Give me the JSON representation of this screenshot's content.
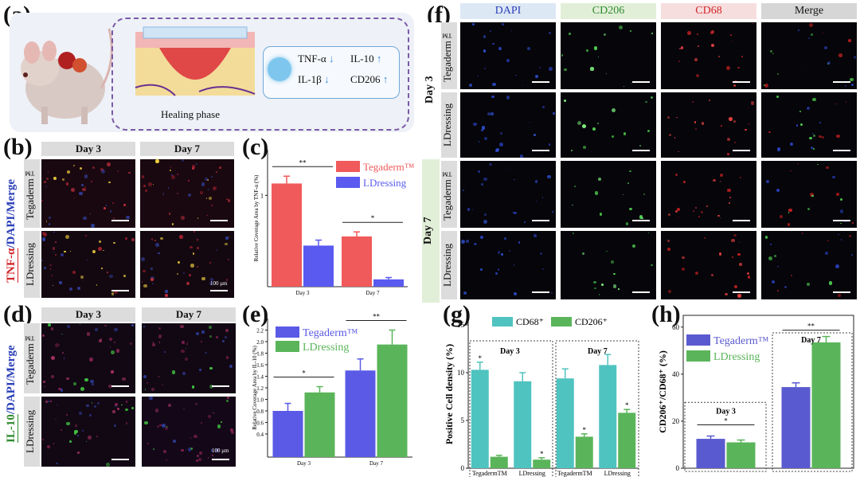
{
  "panel_labels": {
    "a": "(a)",
    "b": "(b)",
    "c": "(c)",
    "d": "(d)",
    "e": "(e)",
    "f": "(f)",
    "g": "(g)",
    "h": "(h)"
  },
  "schematic": {
    "cytokines": [
      "TNF-α",
      "IL-10",
      "IL-1β",
      "CD206"
    ],
    "down_arrow_color": "#3a8fd8",
    "up_arrow_color": "#3a8fd8",
    "caption": "Healing phase",
    "border_color": "#7a5aa8",
    "bg_color": "#eef1f7"
  },
  "panel_b": {
    "days": [
      "Day 3",
      "Day 7"
    ],
    "row_labels": [
      "Tegaderm™",
      "LDressing"
    ],
    "side_label_a": "TNF-α",
    "side_label_b": "/DAPI/Merge",
    "side_label_color": "#d0262a",
    "scale": "100 μm"
  },
  "panel_d": {
    "days": [
      "Day 3",
      "Day 7"
    ],
    "row_labels": [
      "Tegaderm™",
      "LDressing"
    ],
    "side_label_a": "IL-10",
    "side_label_b": "/DAPI/Merge",
    "side_label_color": "#2e8b2e",
    "scale": "100 μm"
  },
  "panel_f": {
    "channels": [
      "DAPI",
      "CD206",
      "CD68",
      "Merge"
    ],
    "channel_colors": [
      "#2a3fb8",
      "#2e8b2e",
      "#d0262a",
      "#111111"
    ],
    "channel_bgs": [
      "#dde8f5",
      "#e2efd8",
      "#f7dede",
      "#d6d6d6"
    ],
    "day_groups": [
      "Day 3",
      "Day 7"
    ],
    "row_labels": [
      "Tegaderm™",
      "LDressing",
      "Tegaderm™",
      "LDressing"
    ]
  },
  "chart_data": [
    {
      "panel": "c",
      "type": "bar",
      "categories": [
        "Day 3",
        "Day 7"
      ],
      "series": [
        {
          "name": "Tegaderm™",
          "values": [
            1.13,
            0.55
          ],
          "errors": [
            0.08,
            0.05
          ],
          "color": "#f05a5a"
        },
        {
          "name": "LDressing",
          "values": [
            0.45,
            0.08
          ],
          "errors": [
            0.06,
            0.02
          ],
          "color": "#5a5af0"
        }
      ],
      "ylabel": "Relative Coverage Area by TNF-α (%)",
      "ylim": [
        0,
        1.5
      ],
      "yticks": [
        {
          "v": 1.0,
          "label": "1"
        }
      ],
      "significance": [
        "**",
        "*"
      ],
      "legend": "top-right"
    },
    {
      "panel": "e",
      "type": "bar",
      "categories": [
        "Day 3",
        "Day 7"
      ],
      "series": [
        {
          "name": "Tegaderm™",
          "values": [
            0.8,
            1.5
          ],
          "errors": [
            0.13,
            0.2
          ],
          "color": "#5a5ae6"
        },
        {
          "name": "LDressing",
          "values": [
            1.12,
            1.95
          ],
          "errors": [
            0.1,
            0.25
          ],
          "color": "#5ab55a"
        }
      ],
      "ylabel": "Relative Coverage Area by IL-10 (%)",
      "ylim": [
        0,
        2.4
      ],
      "yticks": [
        {
          "v": 0.4,
          "label": "0.4"
        },
        {
          "v": 0.6,
          "label": "0.6"
        },
        {
          "v": 0.8,
          "label": "0.8"
        },
        {
          "v": 1.0,
          "label": "1.0"
        },
        {
          "v": 1.2,
          "label": "1.2"
        },
        {
          "v": 1.4,
          "label": "1.4"
        },
        {
          "v": 1.6,
          "label": "1.6"
        },
        {
          "v": 1.8,
          "label": "1.8"
        },
        {
          "v": 2.0,
          "label": "2.0"
        },
        {
          "v": 2.2,
          "label": "2.2"
        }
      ],
      "significance": [
        "*",
        "**"
      ],
      "legend": "top-left"
    },
    {
      "panel": "g",
      "type": "bar",
      "categories": [
        "TegadermTM",
        "LDressing",
        "TegadermTM",
        "LDressing"
      ],
      "groups": [
        "Day 3",
        "Day 7"
      ],
      "series": [
        {
          "name": "CD68⁺",
          "values": [
            10.3,
            9.1,
            9.4,
            10.8
          ],
          "errors": [
            0.8,
            0.9,
            1.0,
            1.1
          ],
          "color": "#4fc3c0"
        },
        {
          "name": "CD206⁺",
          "values": [
            1.2,
            0.9,
            3.3,
            5.8
          ],
          "errors": [
            0.15,
            0.2,
            0.3,
            0.35
          ],
          "color": "#5ab55a"
        }
      ],
      "ylabel": "Positive Cell density (%)",
      "ylim": [
        0,
        15.5
      ],
      "yticks": [
        {
          "v": 0,
          "label": "0"
        },
        {
          "v": 5,
          "label": "5"
        },
        {
          "v": 10,
          "label": "10"
        },
        {
          "v": 15,
          "label": "15"
        }
      ],
      "significance": [
        "*",
        "*",
        "*",
        "*"
      ],
      "legend": "top"
    },
    {
      "panel": "h",
      "type": "bar",
      "categories": [
        "Day 3",
        "Day 7"
      ],
      "series": [
        {
          "name": "Tegaderm™",
          "values": [
            12.5,
            34.5
          ],
          "errors": [
            1.2,
            1.8
          ],
          "color": "#5a5ad0"
        },
        {
          "name": "LDressing",
          "values": [
            11,
            53.5
          ],
          "errors": [
            1.0,
            2.5
          ],
          "color": "#5ab55a"
        }
      ],
      "ylabel": "CD206⁺/CD68⁺ (%)",
      "ylim": [
        0,
        65
      ],
      "yticks": [
        {
          "v": 0,
          "label": "0"
        },
        {
          "v": 20,
          "label": "20"
        },
        {
          "v": 40,
          "label": "40"
        },
        {
          "v": 60,
          "label": "60"
        }
      ],
      "significance": [
        "*",
        "**"
      ],
      "legend": "top-left"
    }
  ]
}
